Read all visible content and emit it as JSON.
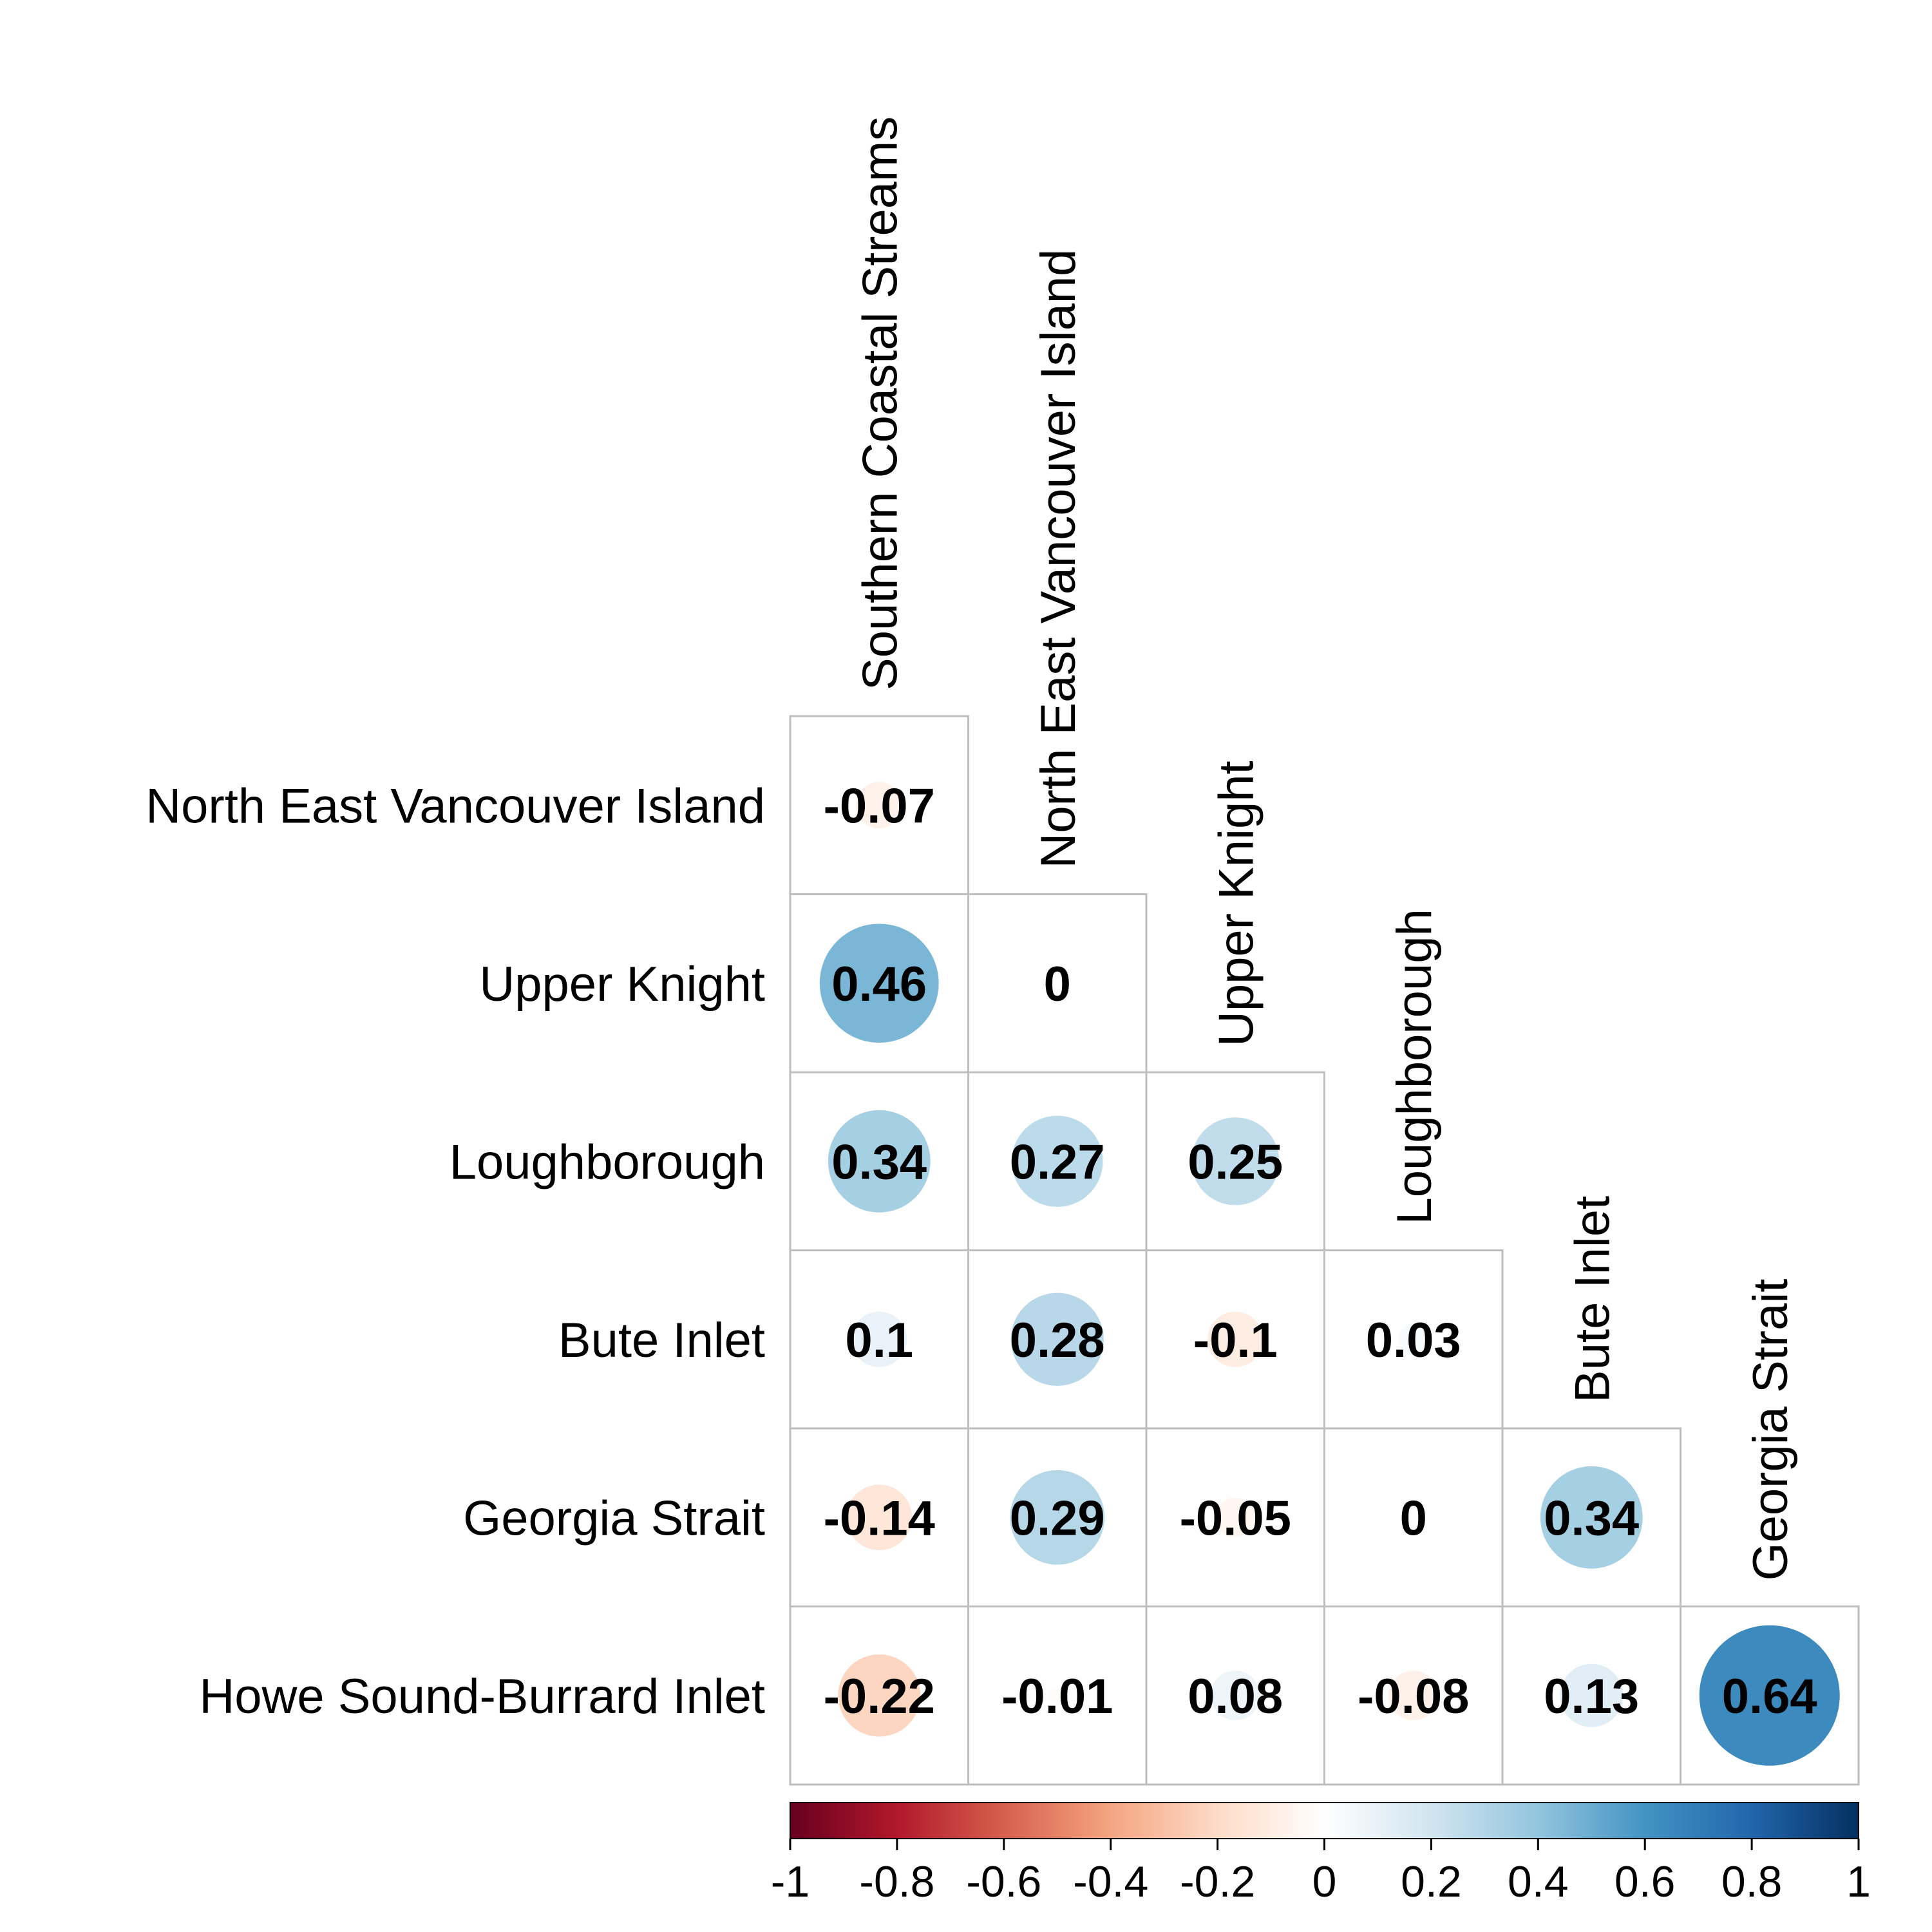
{
  "chart_data": {
    "type": "heatmap",
    "variables": [
      "Southern Coastal Streams",
      "North East Vancouver Island",
      "Upper Knight",
      "Loughborough",
      "Bute Inlet",
      "Georgia Strait",
      "Howe Sound-Burrard Inlet"
    ],
    "column_labels": [
      "Southern Coastal Streams",
      "North East Vancouver Island",
      "Upper Knight",
      "Loughborough",
      "Bute Inlet",
      "Georgia Strait"
    ],
    "row_labels": [
      "North East Vancouver Island",
      "Upper Knight",
      "Loughborough",
      "Bute Inlet",
      "Georgia Strait",
      "Howe Sound-Burrard Inlet"
    ],
    "values": [
      [
        -0.07
      ],
      [
        0.46,
        0
      ],
      [
        0.34,
        0.27,
        0.25
      ],
      [
        0.1,
        0.28,
        -0.1,
        0.03
      ],
      [
        -0.14,
        0.29,
        -0.05,
        0,
        0.34
      ],
      [
        -0.22,
        -0.01,
        0.08,
        -0.08,
        0.13,
        0.64
      ]
    ],
    "value_labels": [
      [
        "-0.07"
      ],
      [
        "0.46",
        "0"
      ],
      [
        "0.34",
        "0.27",
        "0.25"
      ],
      [
        "0.1",
        "0.28",
        "-0.1",
        "0.03"
      ],
      [
        "-0.14",
        "0.29",
        "-0.05",
        "0",
        "0.34"
      ],
      [
        "-0.22",
        "-0.01",
        "0.08",
        "-0.08",
        "0.13",
        "0.64"
      ]
    ],
    "shape": "circle",
    "triangle": "lower",
    "circle_area_proportional_to": "absolute value",
    "color_scale": {
      "range": [
        -1,
        1
      ],
      "palette": [
        "#67001F",
        "#B2182B",
        "#D6604D",
        "#F4A582",
        "#FDDBC7",
        "#FFFFFF",
        "#D1E5F0",
        "#92C5DE",
        "#4393C3",
        "#2166AC",
        "#053061"
      ],
      "ticks": [
        "-1",
        "-0.8",
        "-0.6",
        "-0.4",
        "-0.2",
        "0",
        "0.2",
        "0.4",
        "0.6",
        "0.8",
        "1"
      ],
      "position": "bottom"
    },
    "grid": true
  }
}
